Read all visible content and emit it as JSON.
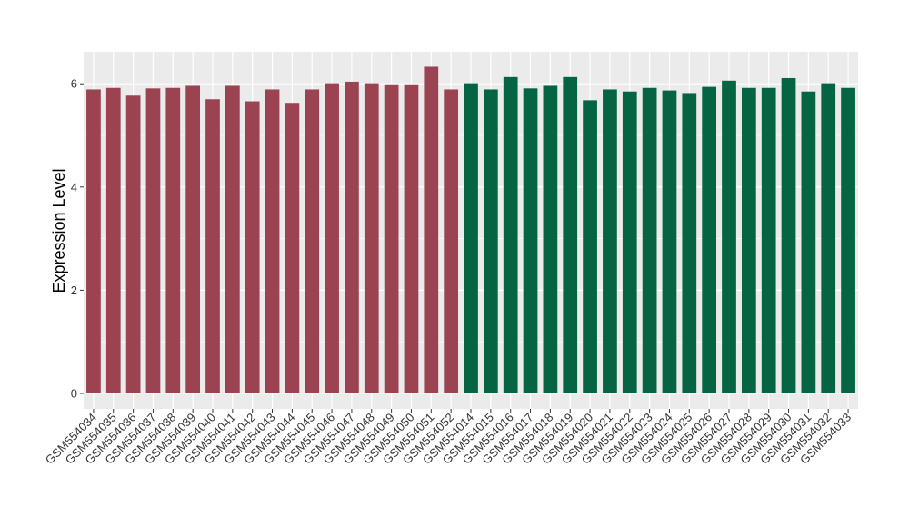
{
  "chart_data": {
    "type": "bar",
    "title": "",
    "xlabel": "",
    "ylabel": "Expression Level",
    "ylim": [
      -0.3,
      6.62
    ],
    "yticks": [
      0,
      2,
      4,
      6
    ],
    "grid": true,
    "legend": "none",
    "categories": [
      "GSM554034",
      "GSM554035",
      "GSM554036",
      "GSM554037",
      "GSM554038",
      "GSM554039",
      "GSM554040",
      "GSM554041",
      "GSM554042",
      "GSM554043",
      "GSM554044",
      "GSM554045",
      "GSM554046",
      "GSM554047",
      "GSM554048",
      "GSM554049",
      "GSM554050",
      "GSM554051",
      "GSM554052",
      "GSM554014",
      "GSM554015",
      "GSM554016",
      "GSM554017",
      "GSM554018",
      "GSM554019",
      "GSM554020",
      "GSM554021",
      "GSM554022",
      "GSM554023",
      "GSM554024",
      "GSM554025",
      "GSM554026",
      "GSM554027",
      "GSM554028",
      "GSM554029",
      "GSM554030",
      "GSM554031",
      "GSM554032",
      "GSM554033"
    ],
    "values": [
      5.89,
      5.92,
      5.77,
      5.91,
      5.92,
      5.96,
      5.7,
      5.96,
      5.66,
      5.89,
      5.63,
      5.89,
      6.01,
      6.04,
      6.01,
      5.99,
      5.99,
      6.33,
      5.89,
      6.01,
      5.89,
      6.13,
      5.91,
      5.96,
      6.13,
      5.68,
      5.89,
      5.85,
      5.92,
      5.87,
      5.82,
      5.94,
      6.06,
      5.92,
      5.92,
      6.11,
      5.85,
      6.01,
      5.92
    ],
    "group_sizes": [
      19,
      20
    ],
    "colors": [
      "#9b4350",
      "#056441"
    ],
    "panel_background": "#ebebeb",
    "grid_color": "#ffffff"
  }
}
